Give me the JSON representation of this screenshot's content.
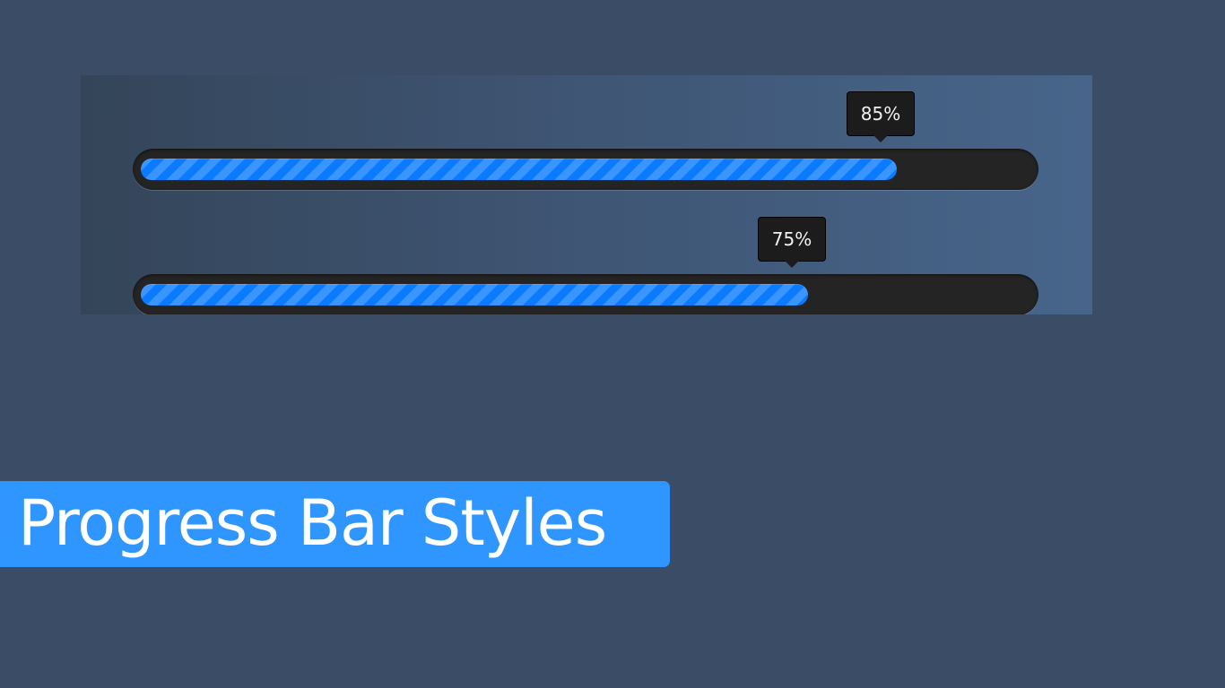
{
  "colors": {
    "page_background": "#3b4d66",
    "track": "#242424",
    "fill": "#0a7bff",
    "stripe": "#3b95ff",
    "tooltip_background": "#1c1c1c",
    "banner": "#2f95ff"
  },
  "progress_bars": [
    {
      "label": "85%",
      "value": 85
    },
    {
      "label": "75%",
      "value": 75
    }
  ],
  "banner": {
    "title": "Progress Bar Styles"
  }
}
